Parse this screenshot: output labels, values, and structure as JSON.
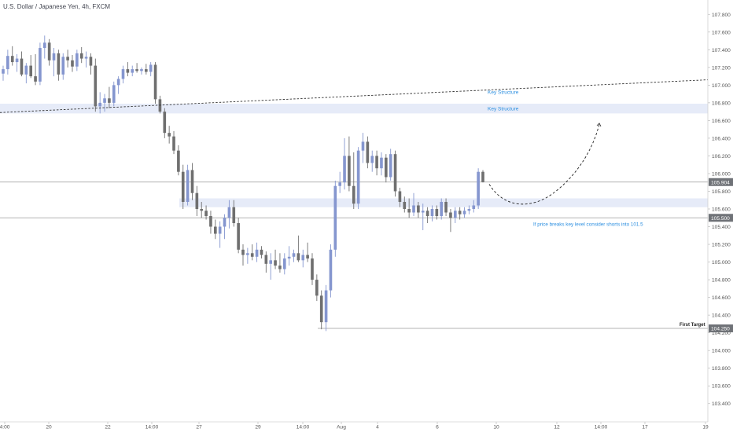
{
  "header": {
    "symbol_title": "U.S. Dollar / Japanese Yen, 4h, FXCM"
  },
  "colors": {
    "bull": "#8596cf",
    "bear": "#6f6f6f",
    "zone": "#e6ebf8",
    "annotation": "#2c8fe0",
    "level_line": "#9a9a9a",
    "price_tag_bg": "#6f7277",
    "grid_text": "#555555"
  },
  "chart_data": {
    "type": "candlestick",
    "y_axis": {
      "range": [
        103.3,
        107.9
      ],
      "tick_labels": [
        "107.800",
        "107.600",
        "107.400",
        "107.200",
        "107.000",
        "106.800",
        "106.600",
        "106.400",
        "106.200",
        "106.000",
        "105.800",
        "105.600",
        "105.400",
        "105.200",
        "105.000",
        "104.800",
        "104.600",
        "104.400",
        "104.200",
        "104.000",
        "103.800",
        "103.600",
        "103.400"
      ]
    },
    "x_axis": {
      "tick_labels": [
        "4:00",
        "20",
        "22",
        "14:00",
        "27",
        "29",
        "14:00",
        "Aug",
        "4",
        "6",
        "10",
        "12",
        "14:00",
        "17",
        "19"
      ]
    },
    "price_tags": [
      {
        "value": 105.904,
        "label": "105.904"
      },
      {
        "value": 105.5,
        "label": "105.500"
      },
      {
        "value": 104.25,
        "label": "104.250"
      }
    ],
    "horizontal_levels": [
      {
        "value": 105.904,
        "label": ""
      },
      {
        "value": 105.5,
        "label": "If price breaks key level consider shorts into 101.5"
      },
      {
        "value": 104.25,
        "label": "First Target"
      }
    ],
    "zones": [
      {
        "label": "Key Structure",
        "low": 106.68,
        "high": 106.79
      },
      {
        "label": "",
        "low": 105.62,
        "high": 105.72
      }
    ],
    "trendline": {
      "label": "Key Structure",
      "start_value": 106.69,
      "end_value": 107.06
    },
    "projection_note": "dashed curve from last candle down to ~105.68 then up to ~106.56",
    "candles": [
      {
        "o": 107.13,
        "h": 107.22,
        "l": 107.05,
        "c": 107.18
      },
      {
        "o": 107.18,
        "h": 107.4,
        "l": 107.12,
        "c": 107.33
      },
      {
        "o": 107.33,
        "h": 107.44,
        "l": 107.22,
        "c": 107.26
      },
      {
        "o": 107.26,
        "h": 107.35,
        "l": 107.15,
        "c": 107.3
      },
      {
        "o": 107.3,
        "h": 107.38,
        "l": 107.1,
        "c": 107.12
      },
      {
        "o": 107.12,
        "h": 107.25,
        "l": 107.02,
        "c": 107.22
      },
      {
        "o": 107.22,
        "h": 107.34,
        "l": 107.08,
        "c": 107.1
      },
      {
        "o": 107.1,
        "h": 107.35,
        "l": 107.0,
        "c": 107.04
      },
      {
        "o": 107.04,
        "h": 107.48,
        "l": 107.0,
        "c": 107.42
      },
      {
        "o": 107.42,
        "h": 107.56,
        "l": 107.3,
        "c": 107.48
      },
      {
        "o": 107.48,
        "h": 107.52,
        "l": 107.22,
        "c": 107.28
      },
      {
        "o": 107.28,
        "h": 107.42,
        "l": 107.1,
        "c": 107.36
      },
      {
        "o": 107.36,
        "h": 107.4,
        "l": 107.05,
        "c": 107.12
      },
      {
        "o": 107.12,
        "h": 107.36,
        "l": 107.06,
        "c": 107.32
      },
      {
        "o": 107.32,
        "h": 107.4,
        "l": 107.2,
        "c": 107.28
      },
      {
        "o": 107.28,
        "h": 107.34,
        "l": 107.15,
        "c": 107.21
      },
      {
        "o": 107.21,
        "h": 107.4,
        "l": 107.16,
        "c": 107.36
      },
      {
        "o": 107.36,
        "h": 107.43,
        "l": 107.25,
        "c": 107.3
      },
      {
        "o": 107.3,
        "h": 107.38,
        "l": 107.2,
        "c": 107.32
      },
      {
        "o": 107.32,
        "h": 107.36,
        "l": 107.12,
        "c": 107.22
      },
      {
        "o": 107.22,
        "h": 107.3,
        "l": 106.7,
        "c": 106.76
      },
      {
        "o": 106.76,
        "h": 106.92,
        "l": 106.68,
        "c": 106.8
      },
      {
        "o": 106.8,
        "h": 106.9,
        "l": 106.7,
        "c": 106.85
      },
      {
        "o": 106.85,
        "h": 106.98,
        "l": 106.74,
        "c": 106.8
      },
      {
        "o": 106.8,
        "h": 107.04,
        "l": 106.76,
        "c": 107.0
      },
      {
        "o": 107.0,
        "h": 107.1,
        "l": 106.9,
        "c": 107.07
      },
      {
        "o": 107.07,
        "h": 107.22,
        "l": 107.02,
        "c": 107.18
      },
      {
        "o": 107.18,
        "h": 107.26,
        "l": 107.1,
        "c": 107.14
      },
      {
        "o": 107.14,
        "h": 107.22,
        "l": 107.1,
        "c": 107.18
      },
      {
        "o": 107.18,
        "h": 107.25,
        "l": 107.14,
        "c": 107.16
      },
      {
        "o": 107.16,
        "h": 107.2,
        "l": 107.12,
        "c": 107.18
      },
      {
        "o": 107.18,
        "h": 107.24,
        "l": 107.12,
        "c": 107.15
      },
      {
        "o": 107.15,
        "h": 107.26,
        "l": 107.1,
        "c": 107.23
      },
      {
        "o": 107.23,
        "h": 107.26,
        "l": 106.79,
        "c": 106.84
      },
      {
        "o": 106.84,
        "h": 106.88,
        "l": 106.68,
        "c": 106.7
      },
      {
        "o": 106.7,
        "h": 106.74,
        "l": 106.4,
        "c": 106.46
      },
      {
        "o": 106.46,
        "h": 106.54,
        "l": 106.34,
        "c": 106.42
      },
      {
        "o": 106.42,
        "h": 106.48,
        "l": 106.22,
        "c": 106.26
      },
      {
        "o": 106.26,
        "h": 106.32,
        "l": 105.98,
        "c": 106.02
      },
      {
        "o": 106.02,
        "h": 106.1,
        "l": 105.6,
        "c": 105.68
      },
      {
        "o": 105.68,
        "h": 106.1,
        "l": 105.64,
        "c": 106.04
      },
      {
        "o": 106.04,
        "h": 106.12,
        "l": 105.7,
        "c": 105.78
      },
      {
        "o": 105.78,
        "h": 105.86,
        "l": 105.52,
        "c": 105.6
      },
      {
        "o": 105.6,
        "h": 105.68,
        "l": 105.5,
        "c": 105.58
      },
      {
        "o": 105.58,
        "h": 105.64,
        "l": 105.48,
        "c": 105.52
      },
      {
        "o": 105.52,
        "h": 105.58,
        "l": 105.32,
        "c": 105.4
      },
      {
        "o": 105.4,
        "h": 105.48,
        "l": 105.26,
        "c": 105.32
      },
      {
        "o": 105.32,
        "h": 105.46,
        "l": 105.16,
        "c": 105.4
      },
      {
        "o": 105.4,
        "h": 105.54,
        "l": 105.26,
        "c": 105.5
      },
      {
        "o": 105.5,
        "h": 105.7,
        "l": 105.38,
        "c": 105.62
      },
      {
        "o": 105.62,
        "h": 105.7,
        "l": 105.4,
        "c": 105.44
      },
      {
        "o": 105.44,
        "h": 105.5,
        "l": 105.1,
        "c": 105.14
      },
      {
        "o": 105.14,
        "h": 105.2,
        "l": 104.96,
        "c": 105.08
      },
      {
        "o": 105.08,
        "h": 105.16,
        "l": 104.98,
        "c": 105.1
      },
      {
        "o": 105.1,
        "h": 105.2,
        "l": 105.02,
        "c": 105.06
      },
      {
        "o": 105.06,
        "h": 105.22,
        "l": 105.0,
        "c": 105.14
      },
      {
        "o": 105.14,
        "h": 105.18,
        "l": 105.04,
        "c": 105.08
      },
      {
        "o": 105.08,
        "h": 105.12,
        "l": 104.88,
        "c": 104.98
      },
      {
        "o": 104.98,
        "h": 105.1,
        "l": 104.8,
        "c": 105.02
      },
      {
        "o": 105.02,
        "h": 105.14,
        "l": 104.92,
        "c": 104.96
      },
      {
        "o": 104.96,
        "h": 105.1,
        "l": 104.88,
        "c": 104.92
      },
      {
        "o": 104.92,
        "h": 105.1,
        "l": 104.86,
        "c": 105.04
      },
      {
        "o": 105.04,
        "h": 105.18,
        "l": 104.96,
        "c": 105.06
      },
      {
        "o": 105.06,
        "h": 105.14,
        "l": 105.0,
        "c": 105.1
      },
      {
        "o": 105.1,
        "h": 105.3,
        "l": 105.0,
        "c": 105.02
      },
      {
        "o": 105.02,
        "h": 105.14,
        "l": 104.94,
        "c": 105.08
      },
      {
        "o": 105.08,
        "h": 105.22,
        "l": 105.0,
        "c": 105.04
      },
      {
        "o": 105.04,
        "h": 105.1,
        "l": 104.74,
        "c": 104.8
      },
      {
        "o": 104.8,
        "h": 104.86,
        "l": 104.56,
        "c": 104.62
      },
      {
        "o": 104.62,
        "h": 104.68,
        "l": 104.24,
        "c": 104.32
      },
      {
        "o": 104.32,
        "h": 104.74,
        "l": 104.22,
        "c": 104.68
      },
      {
        "o": 104.68,
        "h": 105.2,
        "l": 104.6,
        "c": 105.14
      },
      {
        "o": 105.14,
        "h": 105.92,
        "l": 105.06,
        "c": 105.86
      },
      {
        "o": 105.86,
        "h": 106.02,
        "l": 105.78,
        "c": 105.9
      },
      {
        "o": 105.9,
        "h": 106.4,
        "l": 105.82,
        "c": 106.2
      },
      {
        "o": 106.2,
        "h": 106.42,
        "l": 105.8,
        "c": 105.86
      },
      {
        "o": 105.86,
        "h": 106.24,
        "l": 105.6,
        "c": 105.66
      },
      {
        "o": 105.66,
        "h": 106.3,
        "l": 105.6,
        "c": 106.26
      },
      {
        "o": 106.26,
        "h": 106.46,
        "l": 106.12,
        "c": 106.36
      },
      {
        "o": 106.36,
        "h": 106.42,
        "l": 106.06,
        "c": 106.12
      },
      {
        "o": 106.12,
        "h": 106.26,
        "l": 106.02,
        "c": 106.2
      },
      {
        "o": 106.2,
        "h": 106.26,
        "l": 105.98,
        "c": 106.06
      },
      {
        "o": 106.06,
        "h": 106.24,
        "l": 105.98,
        "c": 106.18
      },
      {
        "o": 106.18,
        "h": 106.22,
        "l": 105.9,
        "c": 105.96
      },
      {
        "o": 105.96,
        "h": 106.28,
        "l": 105.92,
        "c": 106.22
      },
      {
        "o": 106.22,
        "h": 106.26,
        "l": 105.74,
        "c": 105.8
      },
      {
        "o": 105.8,
        "h": 105.84,
        "l": 105.62,
        "c": 105.68
      },
      {
        "o": 105.68,
        "h": 105.74,
        "l": 105.56,
        "c": 105.6
      },
      {
        "o": 105.6,
        "h": 105.72,
        "l": 105.5,
        "c": 105.56
      },
      {
        "o": 105.56,
        "h": 105.78,
        "l": 105.52,
        "c": 105.64
      },
      {
        "o": 105.64,
        "h": 105.68,
        "l": 105.5,
        "c": 105.56
      },
      {
        "o": 105.56,
        "h": 105.66,
        "l": 105.36,
        "c": 105.58
      },
      {
        "o": 105.58,
        "h": 105.62,
        "l": 105.44,
        "c": 105.52
      },
      {
        "o": 105.52,
        "h": 105.64,
        "l": 105.46,
        "c": 105.6
      },
      {
        "o": 105.6,
        "h": 105.64,
        "l": 105.48,
        "c": 105.52
      },
      {
        "o": 105.52,
        "h": 105.72,
        "l": 105.48,
        "c": 105.68
      },
      {
        "o": 105.68,
        "h": 105.72,
        "l": 105.52,
        "c": 105.56
      },
      {
        "o": 105.56,
        "h": 105.6,
        "l": 105.34,
        "c": 105.5
      },
      {
        "o": 105.5,
        "h": 105.62,
        "l": 105.44,
        "c": 105.58
      },
      {
        "o": 105.58,
        "h": 105.62,
        "l": 105.48,
        "c": 105.54
      },
      {
        "o": 105.54,
        "h": 105.62,
        "l": 105.5,
        "c": 105.58
      },
      {
        "o": 105.58,
        "h": 105.64,
        "l": 105.54,
        "c": 105.6
      },
      {
        "o": 105.6,
        "h": 105.7,
        "l": 105.56,
        "c": 105.64
      },
      {
        "o": 105.64,
        "h": 106.06,
        "l": 105.6,
        "c": 106.02
      },
      {
        "o": 106.02,
        "h": 106.04,
        "l": 105.9,
        "c": 105.904
      }
    ]
  }
}
